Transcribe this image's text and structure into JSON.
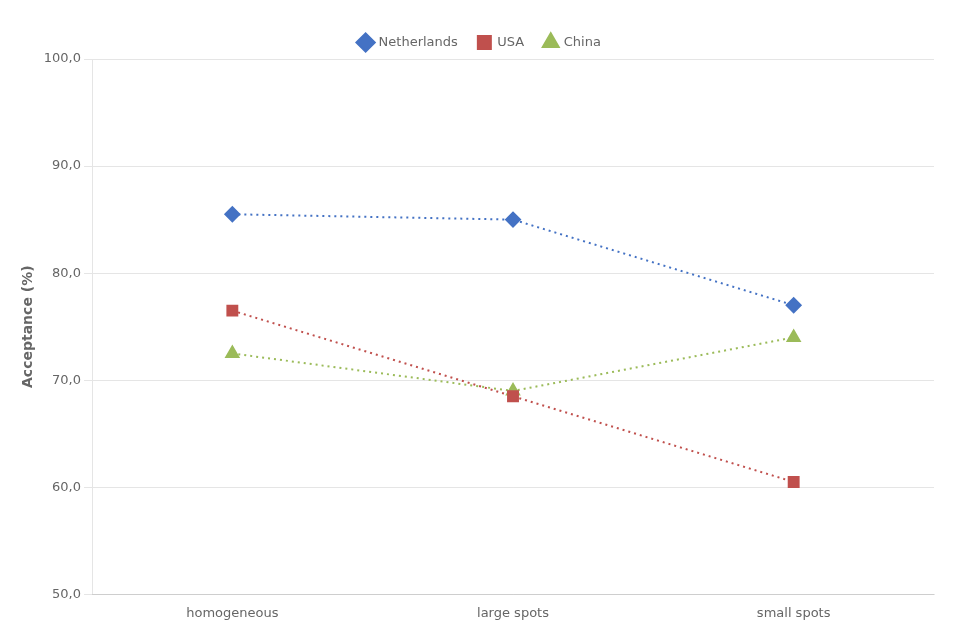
{
  "chart_data": {
    "type": "line",
    "categories": [
      "homogeneous",
      "large spots",
      "small spots"
    ],
    "series": [
      {
        "name": "Netherlands",
        "color": "#4472C4",
        "values": [
          85.5,
          85.0,
          77.0
        ],
        "marker": "diamond",
        "line_style": "dotted"
      },
      {
        "name": "USA",
        "color": "#C0504D",
        "values": [
          76.5,
          68.5,
          60.5
        ],
        "marker": "square",
        "line_style": "dotted"
      },
      {
        "name": "China",
        "color": "#9BBB59",
        "values": [
          72.5,
          69.0,
          74.0
        ],
        "marker": "triangle",
        "line_style": "dotted"
      }
    ],
    "ylabel": "Acceptance (%)",
    "ylim": [
      50,
      100
    ],
    "yticks": [
      {
        "value": 50,
        "label": "50,0"
      },
      {
        "value": 60,
        "label": "60,0"
      },
      {
        "value": 70,
        "label": "70,0"
      },
      {
        "value": 80,
        "label": "80,0"
      },
      {
        "value": 90,
        "label": "90,0"
      },
      {
        "value": 100,
        "label": "100,0"
      }
    ],
    "grid": "y",
    "legend": "top"
  }
}
